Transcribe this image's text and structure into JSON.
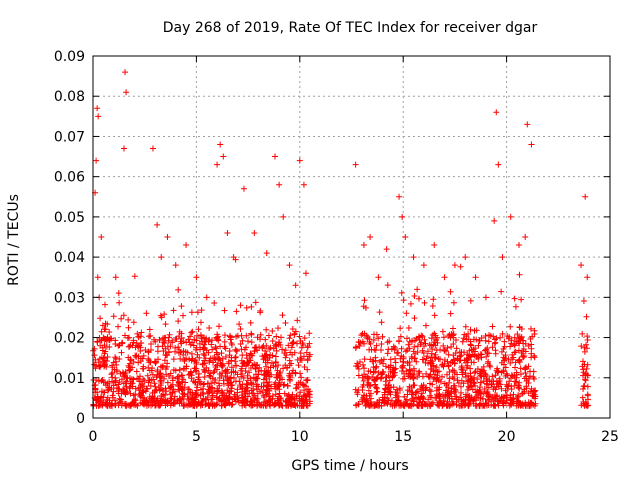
{
  "chart_data": {
    "type": "scatter",
    "title": "Day 268 of 2019, Rate Of TEC Index for receiver dgar",
    "xlabel": "GPS time / hours",
    "ylabel": "ROTI / TECUs",
    "xlim": [
      0,
      24
    ],
    "ylim": [
      0,
      0.09
    ],
    "x_ticks": [
      0,
      5,
      10,
      15,
      20,
      25
    ],
    "x_tick_labels": [
      "0",
      "5",
      "10",
      "15",
      "20",
      "25"
    ],
    "y_ticks": [
      0,
      0.01,
      0.02,
      0.03,
      0.04,
      0.05,
      0.06,
      0.07,
      0.08,
      0.09
    ],
    "y_tick_labels": [
      "0",
      "0.01",
      "0.02",
      "0.03",
      "0.04",
      "0.05",
      "0.06",
      "0.07",
      "0.08",
      "0.09"
    ],
    "grid": true,
    "marker": "plus",
    "series_color": "#ff0000",
    "data_gaps_hours": [
      [
        10.5,
        12.7
      ],
      [
        21.4,
        23.6
      ]
    ],
    "series": [
      {
        "x": [
          0.1,
          0.15,
          0.2,
          0.25,
          0.3,
          0.4,
          0.5,
          1.1,
          1.5,
          1.55,
          1.6,
          2.9,
          3.1,
          3.3,
          3.6,
          4.0,
          4.5,
          5.0,
          5.5,
          6.0,
          6.15,
          6.3,
          6.5,
          6.8,
          7.3,
          7.8,
          8.4,
          8.8,
          9.0,
          9.2,
          9.5,
          9.8,
          10.0,
          10.2,
          10.3,
          12.7,
          13.1,
          13.4,
          13.8,
          14.2,
          14.8,
          14.95,
          15.1,
          15.5,
          16.0,
          16.5,
          17.0,
          17.5,
          18.0,
          18.5,
          19.0,
          19.4,
          19.5,
          19.6,
          19.8,
          20.2,
          20.6,
          20.9,
          21.0,
          21.2,
          23.6,
          23.8,
          23.9
        ],
        "y": [
          0.056,
          0.064,
          0.077,
          0.075,
          0.03,
          0.045,
          0.02,
          0.035,
          0.067,
          0.086,
          0.081,
          0.067,
          0.048,
          0.04,
          0.045,
          0.038,
          0.043,
          0.035,
          0.03,
          0.063,
          0.068,
          0.065,
          0.046,
          0.04,
          0.057,
          0.046,
          0.041,
          0.065,
          0.058,
          0.05,
          0.038,
          0.033,
          0.064,
          0.058,
          0.036,
          0.063,
          0.043,
          0.045,
          0.035,
          0.042,
          0.055,
          0.05,
          0.045,
          0.04,
          0.038,
          0.043,
          0.035,
          0.038,
          0.04,
          0.035,
          0.03,
          0.049,
          0.076,
          0.063,
          0.04,
          0.05,
          0.043,
          0.045,
          0.073,
          0.068,
          0.038,
          0.055,
          0.035
        ]
      }
    ]
  }
}
